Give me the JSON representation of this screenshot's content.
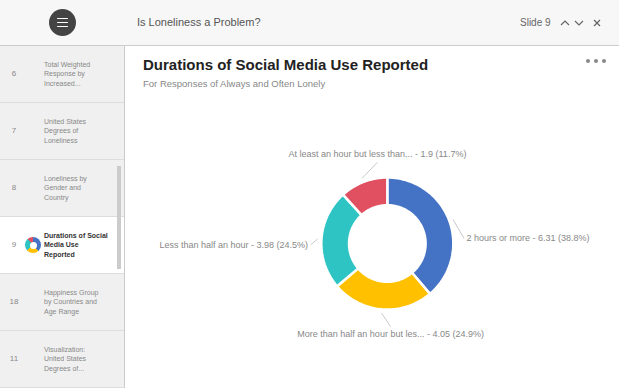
{
  "chart_data": {
    "type": "donut",
    "title": "Durations of Social Media Use Reported",
    "subtitle": "For Responses of Always and Often Lonely",
    "categories": [
      "2 hours or more - 6.31 (38.8%)",
      "More than half an hour but les... - 4.05 (24.9%)",
      "Less than half an hour - 3.98 (24.5%)",
      "At least an hour but less than... - 1.9 (11.7%)"
    ],
    "values": [
      38.8,
      24.9,
      24.5,
      11.7
    ],
    "colors": [
      "#4472C4",
      "#FFC000",
      "#2EC4C4",
      "#E05060"
    ],
    "annotations": [
      "Is Loneliness a Problem?",
      "Slide 9",
      "6",
      "Total Weighted\nResponse by\nIncreased...",
      "7",
      "United States\nDegrees of\nLoneliness",
      "8",
      "Loneliness by\nGender and\nCountry",
      "9",
      "Durations of Social\nMedia Use\nReported",
      "18",
      "Happiness Group\nby Countries and\nAge Range",
      "11",
      "Visualization:\nUnited States\nDegrees of..."
    ]
  }
}
